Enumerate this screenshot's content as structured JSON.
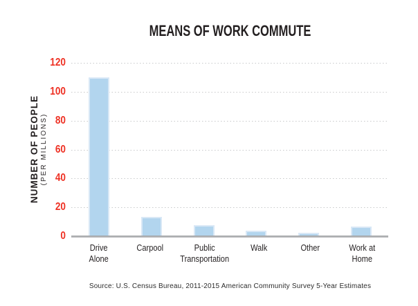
{
  "title": "MEANS OF WORK COMMUTE",
  "source": "Source: U.S. Census Bureau, 2011-2015 American Community Survey 5-Year Estimates",
  "y_axis": {
    "label": "NUMBER OF PEOPLE",
    "label_sub": "(PER MILLIONS)"
  },
  "colors": {
    "bar_fill": "#b2d5ee",
    "bar_border": "#d9e8f6",
    "tick_label": "#ee3124",
    "gridline": "#c7c8ca",
    "axis_line": "#a8aaad",
    "text": "#231f20"
  },
  "chart_data": {
    "type": "bar",
    "title": "MEANS OF WORK COMMUTE",
    "categories": [
      "Drive Alone",
      "Carpool",
      "Public Transportation",
      "Walk",
      "Other",
      "Work at Home"
    ],
    "category_lines": [
      [
        "Drive",
        "Alone"
      ],
      [
        "Carpool"
      ],
      [
        "Public",
        "Transportation"
      ],
      [
        "Walk"
      ],
      [
        "Other"
      ],
      [
        "Work at",
        "Home"
      ]
    ],
    "values": [
      110,
      13.5,
      7.5,
      4,
      2.5,
      6.5
    ],
    "xlabel": "",
    "ylabel": "NUMBER OF PEOPLE (PER MILLIONS)",
    "ylim": [
      0,
      120
    ],
    "yticks": [
      0,
      20,
      40,
      60,
      80,
      100,
      120
    ],
    "grid": "horizontal dotted",
    "legend": "none",
    "source": "Source: U.S. Census Bureau, 2011-2015 American Community Survey 5-Year Estimates"
  }
}
